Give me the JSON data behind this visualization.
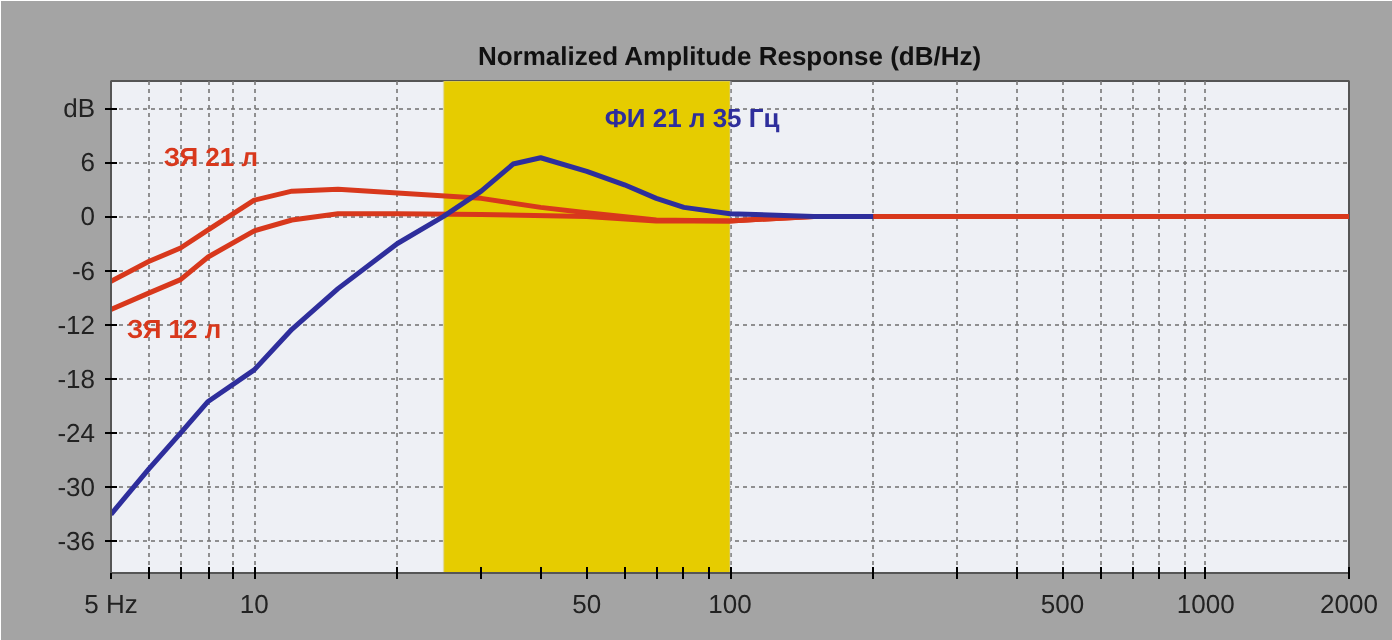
{
  "chart_data": {
    "type": "line",
    "title": "Normalized Amplitude Response (dB/Hz)",
    "log": "x",
    "xlim": [
      5,
      2000
    ],
    "ylim": [
      -39.5,
      15
    ],
    "xticks": [
      {
        "value": 5,
        "label": "5 Hz"
      },
      {
        "value": 6,
        "label": null
      },
      {
        "value": 7,
        "label": null
      },
      {
        "value": 8,
        "label": null
      },
      {
        "value": 9,
        "label": null
      },
      10,
      {
        "value": 20,
        "label": null
      },
      {
        "value": 30,
        "label": null
      },
      {
        "value": 40,
        "label": null
      },
      50,
      {
        "value": 60,
        "label": null
      },
      {
        "value": 70,
        "label": null
      },
      {
        "value": 80,
        "label": null
      },
      {
        "value": 90,
        "label": null
      },
      100,
      {
        "value": 200,
        "label": null
      },
      {
        "value": 300,
        "label": null
      },
      {
        "value": 400,
        "label": null
      },
      500,
      {
        "value": 600,
        "label": null
      },
      {
        "value": 700,
        "label": null
      },
      {
        "value": 800,
        "label": null
      },
      {
        "value": 900,
        "label": null
      },
      1000,
      2000
    ],
    "yticks": [
      {
        "value": 12,
        "label": "dB"
      },
      6,
      0,
      -6,
      -12,
      -18,
      -24,
      -30,
      -36
    ],
    "grid": true,
    "marker": "none",
    "line_style": "solid",
    "bands": [
      {
        "axis": "x",
        "from": 25,
        "to": 100,
        "color": "#e6cc00"
      }
    ],
    "series": [
      {
        "name": "ЗЯ 21 л",
        "color": "#d8381c",
        "x": [
          5,
          6,
          7,
          8,
          10,
          12,
          15,
          20,
          30,
          40,
          50,
          70,
          100,
          150,
          2000
        ],
        "values": [
          -7.2,
          -5,
          -3.5,
          -1.5,
          1.8,
          2.8,
          3,
          2.6,
          2,
          1,
          0.4,
          -0.4,
          -0.5,
          0,
          0
        ]
      },
      {
        "name": "ЗЯ 12 л",
        "color": "#d8381c",
        "x": [
          5,
          6,
          7,
          8,
          10,
          12,
          15,
          20,
          30,
          50,
          70,
          100,
          150,
          2000
        ],
        "values": [
          -10.3,
          -8.5,
          -7,
          -4.5,
          -1.6,
          -0.4,
          0.3,
          0.3,
          0.2,
          0,
          -0.5,
          -0.5,
          0,
          0
        ]
      },
      {
        "name": "ФИ 21 л 35 Гц",
        "color": "#2e2e9c",
        "x": [
          5,
          6,
          7,
          8,
          10,
          12,
          15,
          20,
          25,
          30,
          35,
          40,
          50,
          60,
          70,
          80,
          100,
          150,
          200
        ],
        "values": [
          -33,
          -28,
          -24,
          -20.5,
          -17,
          -12.5,
          -8,
          -3,
          0,
          2.8,
          5.8,
          6.5,
          5,
          3.5,
          2,
          1,
          0.3,
          0,
          0
        ]
      }
    ]
  }
}
